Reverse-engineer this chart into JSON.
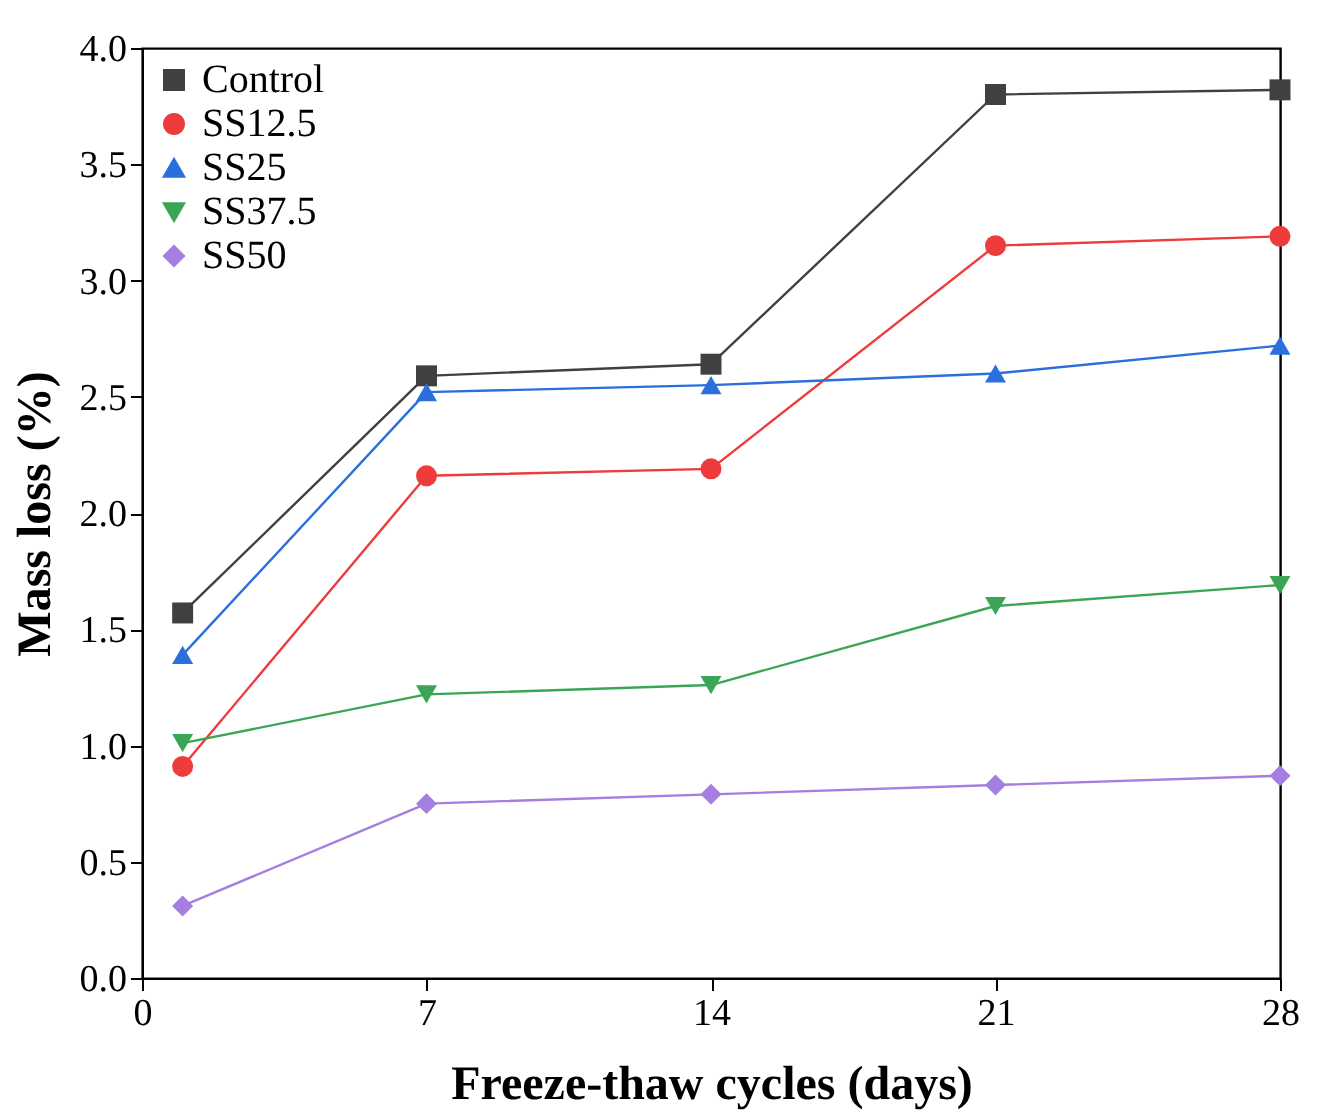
{
  "chart_data": {
    "type": "line",
    "xlabel": "Freeze-thaw cycles (days)",
    "ylabel": "Mass loss (%)",
    "x": [
      1,
      7,
      14,
      21,
      28
    ],
    "series": [
      {
        "name": "Control",
        "color": "#404040",
        "marker": "square",
        "values": [
          1.57,
          2.59,
          2.64,
          3.8,
          3.82
        ]
      },
      {
        "name": "SS12.5",
        "color": "#ee3b3b",
        "marker": "circle",
        "values": [
          0.91,
          2.16,
          2.19,
          3.15,
          3.19
        ]
      },
      {
        "name": "SS25",
        "color": "#2a6fdb",
        "marker": "triangle",
        "values": [
          1.39,
          2.52,
          2.55,
          2.6,
          2.72
        ]
      },
      {
        "name": "SS37.5",
        "color": "#3aa655",
        "marker": "triangle-down",
        "values": [
          1.01,
          1.22,
          1.26,
          1.6,
          1.69
        ]
      },
      {
        "name": "SS50",
        "color": "#a47ee0",
        "marker": "diamond",
        "values": [
          0.31,
          0.75,
          0.79,
          0.83,
          0.87
        ]
      }
    ],
    "xlim": [
      0,
      28
    ],
    "xticks": [
      0,
      7,
      14,
      21,
      28
    ],
    "ylim": [
      0,
      4.0
    ],
    "yticks": [
      {
        "value": 0,
        "label": "0.0"
      },
      {
        "value": 0.5,
        "label": "0.5"
      },
      {
        "value": 1,
        "label": "1.0"
      },
      {
        "value": 1.5,
        "label": "1.5"
      },
      {
        "value": 2,
        "label": "2.0"
      },
      {
        "value": 2.5,
        "label": "2.5"
      },
      {
        "value": 3,
        "label": "3.0"
      },
      {
        "value": 3.5,
        "label": "3.5"
      },
      {
        "value": 4,
        "label": "4.0"
      }
    ],
    "legend": "top left",
    "grid": false,
    "line_style": "solid"
  }
}
